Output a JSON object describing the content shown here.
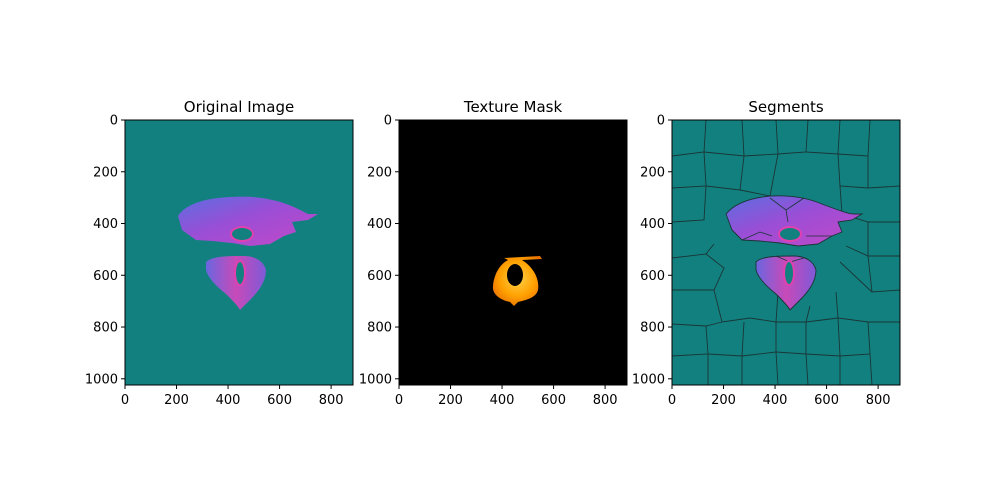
{
  "figure": {
    "panels": [
      {
        "id": "original",
        "title": "Original Image"
      },
      {
        "id": "mask",
        "title": "Texture Mask"
      },
      {
        "id": "segments",
        "title": "Segments"
      }
    ]
  },
  "chart_data": [
    {
      "type": "image",
      "title": "Original Image",
      "xlim": [
        0,
        885
      ],
      "ylim": [
        1024,
        0
      ],
      "x_ticks": [
        0,
        200,
        400,
        600,
        800
      ],
      "y_ticks": [
        0,
        200,
        400,
        600,
        800,
        1000
      ],
      "colors": {
        "background": "#138080",
        "shape": "#7a5ad8",
        "accent": "#e040b0"
      }
    },
    {
      "type": "image",
      "title": "Texture Mask",
      "xlim": [
        0,
        885
      ],
      "ylim": [
        1024,
        0
      ],
      "x_ticks": [
        0,
        200,
        400,
        600,
        800
      ],
      "y_ticks": [
        0,
        200,
        400,
        600,
        800,
        1000
      ],
      "colors": {
        "background": "#000000",
        "shape": "#ffb000"
      }
    },
    {
      "type": "image",
      "title": "Segments",
      "xlim": [
        0,
        885
      ],
      "ylim": [
        1024,
        0
      ],
      "x_ticks": [
        0,
        200,
        400,
        600,
        800
      ],
      "y_ticks": [
        0,
        200,
        400,
        600,
        800,
        1000
      ],
      "colors": {
        "background": "#138080",
        "boundary": "#1a3535",
        "shape": "#7a5ad8"
      }
    }
  ]
}
